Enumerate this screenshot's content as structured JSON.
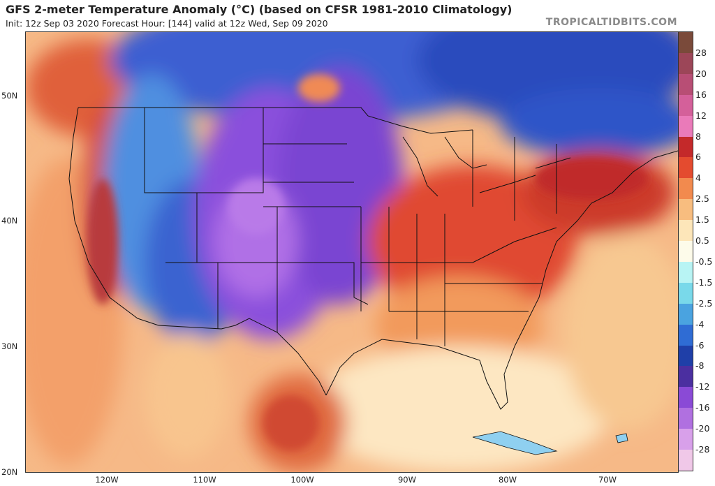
{
  "header": {
    "title": "GFS 2-meter Temperature Anomaly (°C) (based on CFSR 1981-2010 Climatology)",
    "subtitle": "Init: 12z Sep 03 2020   Forecast Hour: [144]   valid at 12z Wed, Sep 09 2020",
    "credit": "TROPICALTIDBITS.COM"
  },
  "map": {
    "lat_labels": [
      "50N",
      "40N",
      "30N",
      "20N"
    ],
    "lon_labels": [
      "120W",
      "110W",
      "100W",
      "90W",
      "80W",
      "70W"
    ],
    "colors": {
      "strong_warm": "#c0392b",
      "warm": "#e8643f",
      "mild_warm": "#f6ad74",
      "neutral": "#fdeccd",
      "cool": "#4f78d2",
      "cold": "#2f4bb8",
      "very_cold": "#8a4fd8",
      "coastline": "#111111"
    }
  },
  "colorbar": {
    "labels": [
      "28",
      "20",
      "16",
      "12",
      "8",
      "6",
      "4",
      "2.5",
      "1.5",
      "0.5",
      "-0.5",
      "-1.5",
      "-2.5",
      "-4",
      "-6",
      "-8",
      "-12",
      "-16",
      "-20",
      "-28"
    ],
    "colors": [
      "#7a4a3a",
      "#9c4658",
      "#b84e75",
      "#d4609a",
      "#ea7ab9",
      "#c4292a",
      "#e44b2f",
      "#f28a4e",
      "#f8bd7f",
      "#fde6b9",
      "#fdfbea",
      "#b8f4f4",
      "#79d9ea",
      "#4aa3e0",
      "#2f6cd4",
      "#1f3fa8",
      "#4b2fa0",
      "#8a4ad6",
      "#b070e0",
      "#d8a0ea",
      "#f0c8e8"
    ]
  }
}
